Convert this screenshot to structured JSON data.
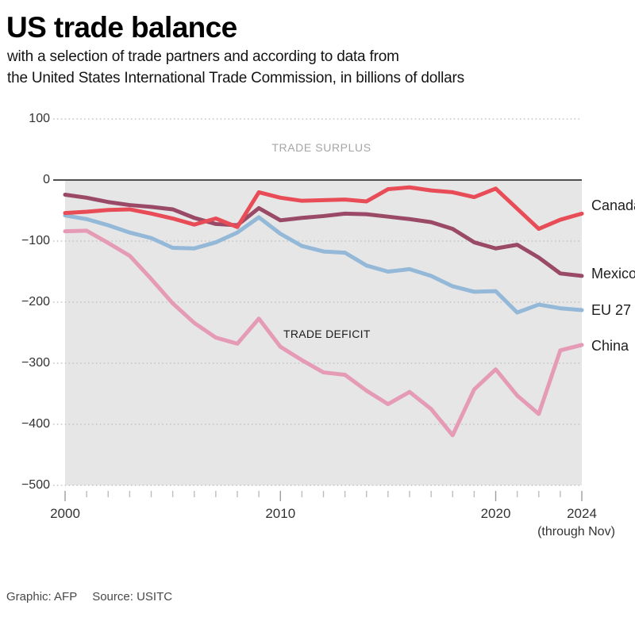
{
  "header": {
    "title": "US trade balance",
    "subtitle_line1": "with a selection of trade partners and according to data from",
    "subtitle_line2": "the United States International Trade Commission, in billions of dollars"
  },
  "annotations": {
    "surplus": "TRADE SURPLUS",
    "deficit": "TRADE DEFICIT"
  },
  "footer": {
    "credit": "Graphic: AFP",
    "source": "Source: USITC"
  },
  "chart_data": {
    "type": "line",
    "title": "US trade balance",
    "units": "billions of dollars",
    "x": [
      2000,
      2001,
      2002,
      2003,
      2004,
      2005,
      2006,
      2007,
      2008,
      2009,
      2010,
      2011,
      2012,
      2013,
      2014,
      2015,
      2016,
      2017,
      2018,
      2019,
      2020,
      2021,
      2022,
      2023,
      2024
    ],
    "series": [
      {
        "name": "Canada",
        "color": "#e84c57",
        "values": [
          -54,
          -52,
          -49,
          -48,
          -55,
          -63,
          -73,
          -63,
          -77,
          -20,
          -29,
          -34,
          -33,
          -32,
          -35,
          -15,
          -12,
          -17,
          -20,
          -28,
          -14,
          -47,
          -80,
          -65,
          -55
        ]
      },
      {
        "name": "Mexico",
        "color": "#9a4a66",
        "values": [
          -24,
          -29,
          -36,
          -41,
          -44,
          -48,
          -62,
          -72,
          -74,
          -46,
          -66,
          -62,
          -59,
          -55,
          -56,
          -60,
          -64,
          -69,
          -80,
          -102,
          -112,
          -106,
          -127,
          -153,
          -157
        ]
      },
      {
        "name": "EU 27",
        "color": "#93b8d8",
        "values": [
          -58,
          -64,
          -74,
          -86,
          -95,
          -111,
          -112,
          -102,
          -86,
          -61,
          -88,
          -108,
          -117,
          -119,
          -140,
          -150,
          -146,
          -157,
          -174,
          -183,
          -182,
          -217,
          -204,
          -210,
          -213
        ]
      },
      {
        "name": "China",
        "color": "#e59ab5",
        "values": [
          -84,
          -83,
          -103,
          -124,
          -162,
          -202,
          -234,
          -258,
          -268,
          -227,
          -273,
          -295,
          -315,
          -319,
          -345,
          -367,
          -347,
          -375,
          -418,
          -343,
          -310,
          -353,
          -383,
          -279,
          -270
        ]
      }
    ],
    "ylim": [
      -500,
      100
    ],
    "y_axis": {
      "ticks": [
        {
          "value": 100,
          "label": "100"
        },
        {
          "value": 0,
          "label": "0"
        },
        {
          "value": -100,
          "label": "−100"
        },
        {
          "value": -200,
          "label": "−200"
        },
        {
          "value": -300,
          "label": "−300"
        },
        {
          "value": -400,
          "label": "−400"
        },
        {
          "value": -500,
          "label": "−500"
        }
      ]
    },
    "x_axis": {
      "minor_tick_years": [
        2000,
        2001,
        2002,
        2003,
        2004,
        2005,
        2006,
        2007,
        2008,
        2009,
        2010,
        2011,
        2012,
        2013,
        2014,
        2015,
        2016,
        2017,
        2018,
        2019,
        2020,
        2021,
        2022,
        2023,
        2024
      ],
      "major_ticks": [
        {
          "year": 2000,
          "label": "2000"
        },
        {
          "year": 2010,
          "label": "2010"
        },
        {
          "year": 2020,
          "label": "2020"
        },
        {
          "year": 2024,
          "label": "2024",
          "sublabel": "(through Nov)"
        }
      ]
    },
    "grid": "dotted-horizontal",
    "legend_position": "right",
    "colors": {
      "deficit_area": "#e6e6e6",
      "zero_line": "#4f4f4f",
      "gridline": "#c2c2c2",
      "tick_minor": "#bdbdbd",
      "tick_major": "#9e9e9e"
    }
  }
}
